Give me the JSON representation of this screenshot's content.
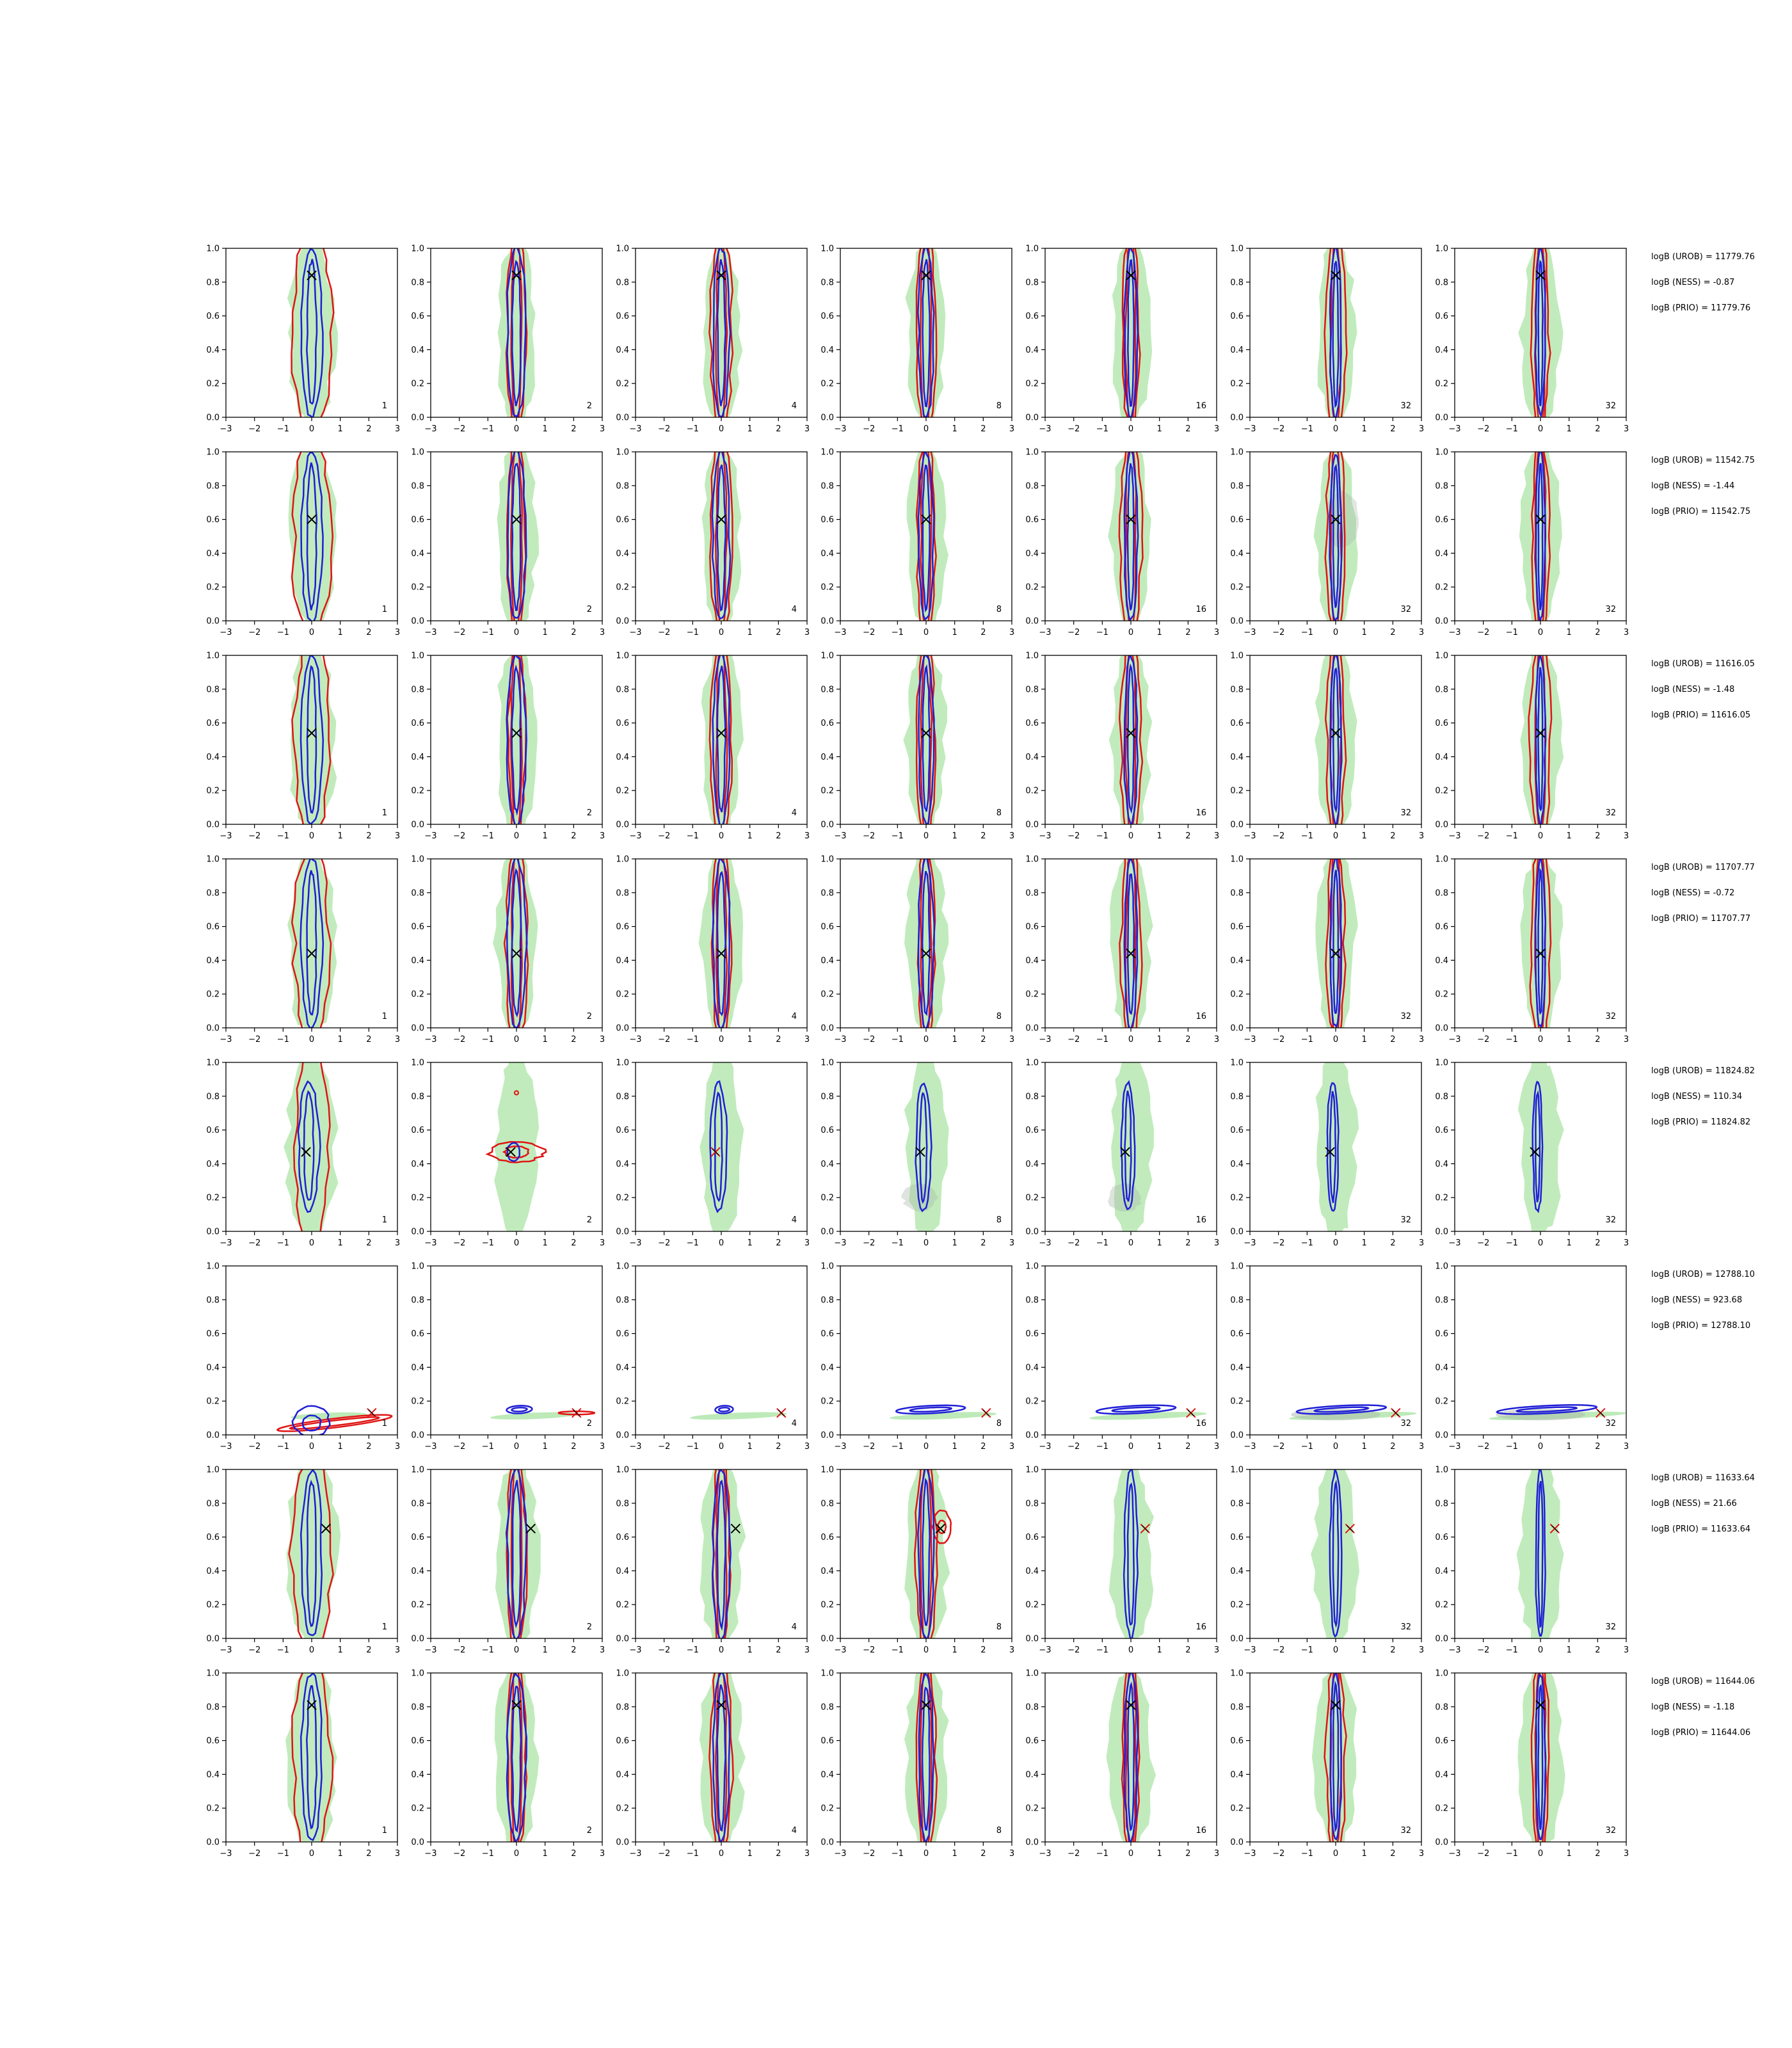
{
  "chart_data": {
    "type": "contour",
    "title": "",
    "xlabel": "",
    "ylabel": "",
    "xlim": [
      -3,
      3
    ],
    "ylim": [
      0,
      1
    ],
    "xticks": [
      -3,
      -2,
      -1,
      0,
      1,
      2,
      3
    ],
    "yticks": [
      0.0,
      0.2,
      0.4,
      0.6,
      0.8,
      1.0
    ],
    "grid": false,
    "colors": {
      "filled": "#b6e8b0",
      "filled_dark": "#a9b8a9",
      "blue": "#1f1fd6",
      "red": "#e01414",
      "marker": "#000000"
    },
    "column_labels": [
      "1",
      "2",
      "4",
      "8",
      "16",
      "32",
      "32"
    ],
    "rows": [
      {
        "truth": [
          0.0,
          0.84
        ],
        "mode": "vertical",
        "logB": [
          "logB (UROB) = 11779.76",
          "logB (NESS) = -0.87",
          "logB (PRIO) = 11779.76"
        ]
      },
      {
        "truth": [
          0.0,
          0.6
        ],
        "mode": "vertical",
        "logB": [
          "logB (UROB) = 11542.75",
          "logB (NESS) = -1.44",
          "logB (PRIO) = 11542.75"
        ]
      },
      {
        "truth": [
          0.0,
          0.54
        ],
        "mode": "vertical",
        "logB": [
          "logB (UROB) = 11616.05",
          "logB (NESS) = -1.48",
          "logB (PRIO) = 11616.05"
        ]
      },
      {
        "truth": [
          0.0,
          0.44
        ],
        "mode": "vertical",
        "logB": [
          "logB (UROB) = 11707.77",
          "logB (NESS) = -0.72",
          "logB (PRIO) = 11707.77"
        ]
      },
      {
        "truth": [
          -0.2,
          0.47
        ],
        "mode": "vertical_shift",
        "logB": [
          "logB (UROB) = 11824.82",
          "logB (NESS) = 110.34",
          "logB (PRIO) = 11824.82"
        ]
      },
      {
        "truth": [
          2.1,
          0.13
        ],
        "mode": "horizontal",
        "logB": [
          "logB (UROB) = 12788.10",
          "logB (NESS) = 923.68",
          "logB (PRIO) = 12788.10"
        ]
      },
      {
        "truth": [
          0.5,
          0.65
        ],
        "mode": "vertical_offset",
        "logB": [
          "logB (UROB) = 11633.64",
          "logB (NESS) = 21.66",
          "logB (PRIO) = 11633.64"
        ]
      },
      {
        "truth": [
          0.0,
          0.81
        ],
        "mode": "vertical",
        "logB": [
          "logB (UROB) = 11644.06",
          "logB (NESS) = -1.18",
          "logB (PRIO) = 11644.06"
        ]
      }
    ]
  }
}
